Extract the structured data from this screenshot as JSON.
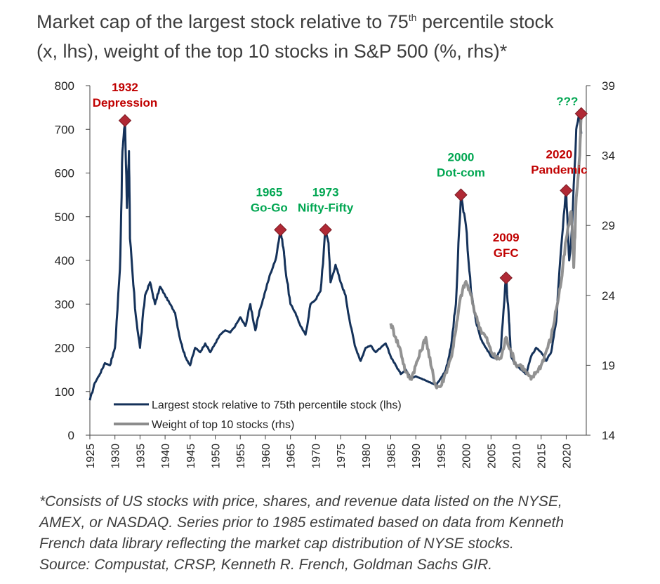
{
  "header": {
    "title_main": "Market cap of the largest stock relative to 75",
    "title_sup": "th",
    "title_rest": " percentile stock",
    "title_line2": "(x, lhs), weight of the top 10 stocks in S&P 500 (%, rhs)*"
  },
  "footnote": {
    "line1": "*Consists of US stocks with price, shares, and revenue data listed on the NYSE,",
    "line2": "AMEX, or NASDAQ. Series prior to 1985 estimated based on data from Kenneth",
    "line3": "French data library reflecting the market cap distribution of NYSE stocks.",
    "line4": "Source: Compustat, CRSP, Kenneth R. French, Goldman Sachs GIR."
  },
  "colors": {
    "navy": "#15325a",
    "gray": "#8c8c8c",
    "red": "#c00000",
    "green": "#00a651",
    "marker": "#b02935",
    "axis": "#444444"
  },
  "chart_data": {
    "type": "line",
    "x_range": [
      1925,
      2024
    ],
    "x_ticks": [
      1925,
      1930,
      1935,
      1940,
      1945,
      1950,
      1955,
      1960,
      1965,
      1970,
      1975,
      1980,
      1985,
      1990,
      1995,
      2000,
      2005,
      2010,
      2015,
      2020
    ],
    "y_left": {
      "range": [
        0,
        800
      ],
      "ticks": [
        0,
        100,
        200,
        300,
        400,
        500,
        600,
        700,
        800
      ]
    },
    "y_right": {
      "range": [
        14,
        39
      ],
      "ticks": [
        14,
        19,
        24,
        29,
        34,
        39
      ]
    },
    "legend": {
      "position": "bottom-left",
      "entries": [
        "Largest stock relative to 75th percentile stock (lhs)",
        "Weight of top 10 stocks (rhs)"
      ]
    },
    "series": [
      {
        "name": "Largest stock relative to 75th percentile stock (lhs)",
        "axis": "left",
        "color": "#15325a",
        "points": [
          [
            1925,
            80
          ],
          [
            1926,
            120
          ],
          [
            1927,
            140
          ],
          [
            1928,
            165
          ],
          [
            1929,
            160
          ],
          [
            1930,
            200
          ],
          [
            1931,
            380
          ],
          [
            1931.5,
            650
          ],
          [
            1932,
            720
          ],
          [
            1932.4,
            520
          ],
          [
            1932.8,
            650
          ],
          [
            1933,
            450
          ],
          [
            1934,
            290
          ],
          [
            1935,
            200
          ],
          [
            1936,
            320
          ],
          [
            1937,
            350
          ],
          [
            1938,
            300
          ],
          [
            1939,
            340
          ],
          [
            1940,
            320
          ],
          [
            1941,
            300
          ],
          [
            1942,
            280
          ],
          [
            1943,
            220
          ],
          [
            1944,
            180
          ],
          [
            1945,
            160
          ],
          [
            1946,
            200
          ],
          [
            1947,
            190
          ],
          [
            1948,
            210
          ],
          [
            1949,
            190
          ],
          [
            1950,
            210
          ],
          [
            1951,
            230
          ],
          [
            1952,
            240
          ],
          [
            1953,
            235
          ],
          [
            1954,
            250
          ],
          [
            1955,
            270
          ],
          [
            1956,
            250
          ],
          [
            1957,
            300
          ],
          [
            1958,
            240
          ],
          [
            1959,
            290
          ],
          [
            1960,
            330
          ],
          [
            1961,
            370
          ],
          [
            1962,
            400
          ],
          [
            1963,
            470
          ],
          [
            1963.7,
            420
          ],
          [
            1964,
            380
          ],
          [
            1965,
            300
          ],
          [
            1966,
            280
          ],
          [
            1967,
            250
          ],
          [
            1968,
            230
          ],
          [
            1969,
            300
          ],
          [
            1970,
            310
          ],
          [
            1971,
            330
          ],
          [
            1972,
            470
          ],
          [
            1972.6,
            440
          ],
          [
            1973,
            350
          ],
          [
            1974,
            390
          ],
          [
            1975,
            350
          ],
          [
            1976,
            320
          ],
          [
            1977,
            250
          ],
          [
            1978,
            200
          ],
          [
            1979,
            170
          ],
          [
            1980,
            200
          ],
          [
            1981,
            205
          ],
          [
            1982,
            190
          ],
          [
            1983,
            200
          ],
          [
            1984,
            210
          ],
          [
            1985,
            180
          ],
          [
            1986,
            160
          ],
          [
            1987,
            140
          ],
          [
            1988,
            150
          ],
          [
            1989,
            130
          ],
          [
            1990,
            135
          ],
          [
            1991,
            130
          ],
          [
            1992,
            125
          ],
          [
            1993,
            120
          ],
          [
            1994,
            115
          ],
          [
            1995,
            130
          ],
          [
            1996,
            150
          ],
          [
            1997,
            200
          ],
          [
            1998,
            300
          ],
          [
            1999,
            550
          ],
          [
            2000,
            480
          ],
          [
            2001,
            330
          ],
          [
            2002,
            260
          ],
          [
            2003,
            220
          ],
          [
            2004,
            200
          ],
          [
            2005,
            180
          ],
          [
            2006,
            175
          ],
          [
            2007,
            200
          ],
          [
            2008,
            360
          ],
          [
            2008.6,
            260
          ],
          [
            2009,
            180
          ],
          [
            2010,
            160
          ],
          [
            2011,
            150
          ],
          [
            2012,
            140
          ],
          [
            2013,
            180
          ],
          [
            2014,
            200
          ],
          [
            2015,
            190
          ],
          [
            2016,
            170
          ],
          [
            2017,
            190
          ],
          [
            2018,
            260
          ],
          [
            2019,
            430
          ],
          [
            2020,
            560
          ],
          [
            2020.6,
            400
          ],
          [
            2021,
            450
          ],
          [
            2022,
            700
          ],
          [
            2022.6,
            740
          ],
          [
            2023,
            690
          ]
        ]
      },
      {
        "name": "Weight of top 10 stocks (rhs)",
        "axis": "right",
        "color": "#8c8c8c",
        "points": [
          [
            1985,
            22
          ],
          [
            1986,
            21
          ],
          [
            1987,
            20
          ],
          [
            1988,
            18.5
          ],
          [
            1989,
            18
          ],
          [
            1990,
            19
          ],
          [
            1991,
            20
          ],
          [
            1992,
            21
          ],
          [
            1993,
            19
          ],
          [
            1994,
            17.5
          ],
          [
            1995,
            17.5
          ],
          [
            1996,
            18.5
          ],
          [
            1997,
            19.5
          ],
          [
            1998,
            21.5
          ],
          [
            1999,
            24
          ],
          [
            2000,
            25
          ],
          [
            2001,
            24
          ],
          [
            2002,
            22.5
          ],
          [
            2003,
            21.5
          ],
          [
            2004,
            21
          ],
          [
            2005,
            20
          ],
          [
            2006,
            19.5
          ],
          [
            2007,
            19.5
          ],
          [
            2008,
            21
          ],
          [
            2009,
            20
          ],
          [
            2010,
            19
          ],
          [
            2011,
            19
          ],
          [
            2012,
            18.5
          ],
          [
            2013,
            18
          ],
          [
            2014,
            18.5
          ],
          [
            2015,
            19
          ],
          [
            2016,
            20
          ],
          [
            2017,
            21
          ],
          [
            2018,
            23
          ],
          [
            2019,
            25
          ],
          [
            2020,
            28
          ],
          [
            2021,
            30
          ],
          [
            2021.5,
            26
          ],
          [
            2022,
            31
          ],
          [
            2022.7,
            34
          ],
          [
            2023,
            37
          ]
        ]
      }
    ],
    "annotations": [
      {
        "year": "1932",
        "event": "Depression",
        "color": "#c00000",
        "x": 1932,
        "y": 720
      },
      {
        "year": "1965",
        "event": "Go-Go",
        "color": "#00a651",
        "x": 1963,
        "y": 470
      },
      {
        "year": "1973",
        "event": "Nifty-Fifty",
        "color": "#00a651",
        "x": 1972,
        "y": 470
      },
      {
        "year": "2000",
        "event": "Dot-com",
        "color": "#00a651",
        "x": 1999,
        "y": 550
      },
      {
        "year": "2009",
        "event": "GFC",
        "color": "#c00000",
        "x": 2008,
        "y": 360
      },
      {
        "year": "2020",
        "event": "Pandemic",
        "color": "#c00000",
        "x": 2020,
        "y": 560
      },
      {
        "year": "???",
        "event": "",
        "color": "#00a651",
        "x": 2023,
        "y": 37,
        "axis": "right"
      }
    ]
  }
}
